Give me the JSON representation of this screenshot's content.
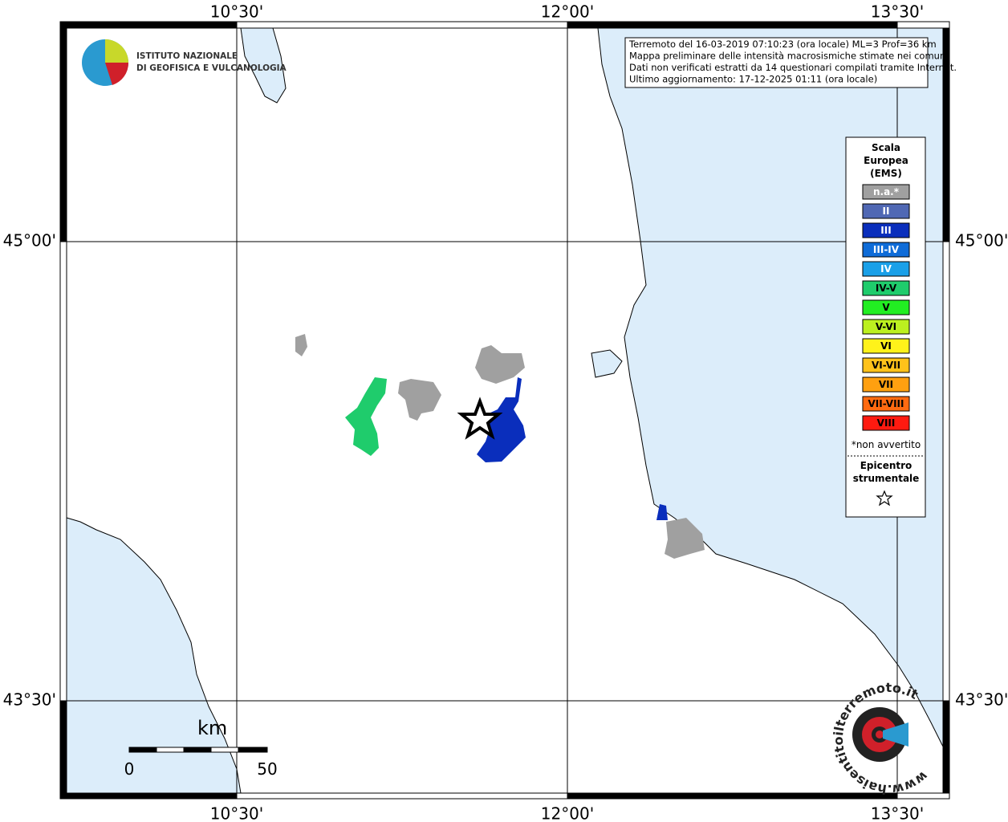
{
  "header": {
    "lines": [
      "Terremoto del 16-03-2019 07:10:23 (ora locale) ML=3 Prof=36 km",
      "Mappa preliminare delle intensità macrosismiche stimate nei comuni",
      "Dati non verificati estratti da 14 questionari compilati tramite Internet.",
      "Ultimo aggiornamento: 17-12-2025 01:11 (ora locale)"
    ]
  },
  "logo": {
    "lines": [
      "ISTITUTO NAZIONALE",
      "DI GEOFISICA E VULCANOLOGIA"
    ]
  },
  "map": {
    "lon_labels": [
      "10°30'",
      "12°00'",
      "13°30'"
    ],
    "lat_labels": [
      "45°00'",
      "43°30'"
    ]
  },
  "legend": {
    "title": [
      "Scala",
      "Europea",
      "(EMS)"
    ],
    "items": [
      {
        "label": "n.a.*",
        "color": "#a0a0a0",
        "text_color": "#ffffff"
      },
      {
        "label": "II",
        "color": "#5068b4",
        "text_color": "#ffffff"
      },
      {
        "label": "III",
        "color": "#0a2ebc",
        "text_color": "#ffffff"
      },
      {
        "label": "III-IV",
        "color": "#0f6cd8",
        "text_color": "#ffffff"
      },
      {
        "label": "IV",
        "color": "#1aa0e8",
        "text_color": "#ffffff"
      },
      {
        "label": "IV-V",
        "color": "#1fcc6c",
        "text_color": "#000000"
      },
      {
        "label": "V",
        "color": "#22ee22",
        "text_color": "#000000"
      },
      {
        "label": "V-VI",
        "color": "#bcf020",
        "text_color": "#000000"
      },
      {
        "label": "VI",
        "color": "#fff21a",
        "text_color": "#000000"
      },
      {
        "label": "VI-VII",
        "color": "#ffc21a",
        "text_color": "#000000"
      },
      {
        "label": "VII",
        "color": "#ffa010",
        "text_color": "#000000"
      },
      {
        "label": "VII-VIII",
        "color": "#ff6a10",
        "text_color": "#000000"
      },
      {
        "label": "VIII",
        "color": "#ff1a10",
        "text_color": "#000000"
      }
    ],
    "note": "*non avvertito",
    "epicenter": [
      "Epicentro",
      "strumentale"
    ]
  },
  "scale_bar": {
    "unit": "km",
    "labels": [
      "0",
      "50"
    ]
  },
  "watermark": "www.haisentitoilterremoto.it"
}
